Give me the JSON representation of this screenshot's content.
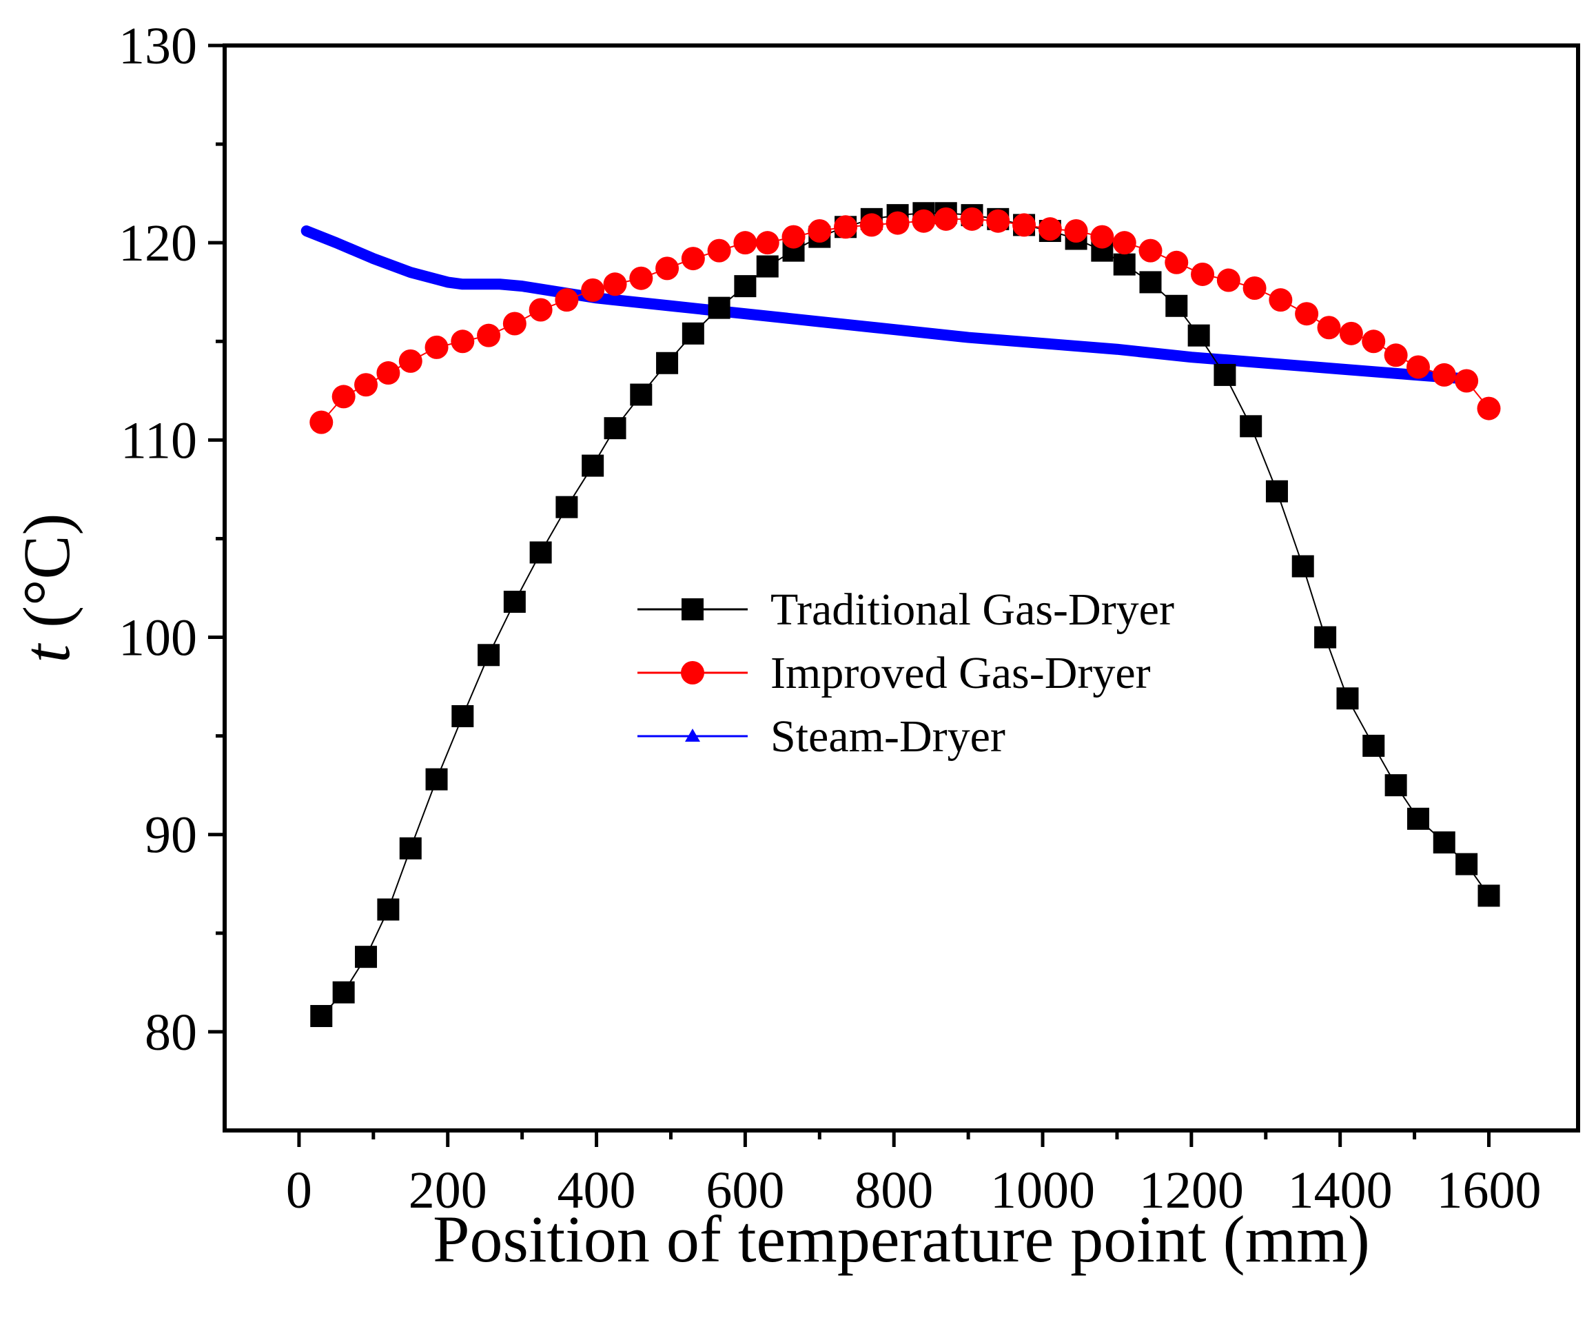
{
  "chart_data": {
    "type": "line",
    "xlabel": "Position of temperature point (mm)",
    "ylabel_italic": "t",
    "ylabel_unit": " (°C)",
    "xlim": [
      -100,
      1720
    ],
    "ylim": [
      75,
      130
    ],
    "xticks": [
      0,
      200,
      400,
      600,
      800,
      1000,
      1200,
      1400,
      1600
    ],
    "yticks": [
      80,
      90,
      100,
      110,
      120,
      130
    ],
    "legend_position": "center",
    "series": [
      {
        "name": "Traditional Gas-Dryer",
        "color": "#000000",
        "marker": "square",
        "x": [
          30,
          60,
          90,
          120,
          150,
          185,
          220,
          255,
          290,
          325,
          360,
          395,
          425,
          460,
          495,
          530,
          565,
          600,
          630,
          665,
          700,
          735,
          770,
          805,
          840,
          870,
          905,
          940,
          975,
          1010,
          1045,
          1080,
          1110,
          1145,
          1180,
          1210,
          1245,
          1280,
          1315,
          1350,
          1380,
          1410,
          1445,
          1475,
          1505,
          1540,
          1570,
          1600
        ],
        "y": [
          80.8,
          82.0,
          83.8,
          86.2,
          89.3,
          92.8,
          96.0,
          99.1,
          101.8,
          104.3,
          106.6,
          108.7,
          110.6,
          112.3,
          113.9,
          115.4,
          116.7,
          117.8,
          118.8,
          119.6,
          120.3,
          120.8,
          121.2,
          121.4,
          121.5,
          121.5,
          121.4,
          121.2,
          120.9,
          120.6,
          120.2,
          119.6,
          118.9,
          118.0,
          116.8,
          115.3,
          113.3,
          110.7,
          107.4,
          103.6,
          100.0,
          96.9,
          94.5,
          92.5,
          90.8,
          89.6,
          88.5,
          86.9
        ]
      },
      {
        "name": "Improved Gas-Dryer",
        "color": "#ff0000",
        "marker": "circle",
        "x": [
          30,
          60,
          90,
          120,
          150,
          185,
          220,
          255,
          290,
          325,
          360,
          395,
          425,
          460,
          495,
          530,
          565,
          600,
          630,
          665,
          700,
          735,
          770,
          805,
          840,
          870,
          905,
          940,
          975,
          1010,
          1045,
          1080,
          1110,
          1145,
          1180,
          1215,
          1250,
          1285,
          1320,
          1355,
          1385,
          1415,
          1445,
          1475,
          1505,
          1540,
          1570,
          1600
        ],
        "y": [
          110.9,
          112.2,
          112.8,
          113.4,
          114.0,
          114.7,
          115.0,
          115.3,
          115.9,
          116.6,
          117.1,
          117.6,
          117.9,
          118.2,
          118.7,
          119.2,
          119.6,
          120.0,
          120.0,
          120.3,
          120.6,
          120.8,
          120.9,
          121.0,
          121.1,
          121.2,
          121.2,
          121.1,
          120.9,
          120.7,
          120.6,
          120.3,
          120.0,
          119.6,
          119.0,
          118.4,
          118.1,
          117.7,
          117.1,
          116.4,
          115.7,
          115.4,
          115.0,
          114.3,
          113.7,
          113.3,
          113.0,
          111.6
        ]
      },
      {
        "name": "Steam-Dryer",
        "color": "#0000ff",
        "marker": "triangle",
        "x": [
          10,
          50,
          100,
          150,
          200,
          220,
          270,
          300,
          400,
          500,
          600,
          700,
          800,
          900,
          1000,
          1100,
          1200,
          1300,
          1400,
          1500,
          1570
        ],
        "y": [
          120.6,
          120.0,
          119.2,
          118.5,
          118.0,
          117.9,
          117.9,
          117.8,
          117.2,
          116.8,
          116.4,
          116.0,
          115.6,
          115.2,
          114.9,
          114.6,
          114.2,
          113.9,
          113.6,
          113.3,
          113.1
        ]
      }
    ]
  }
}
